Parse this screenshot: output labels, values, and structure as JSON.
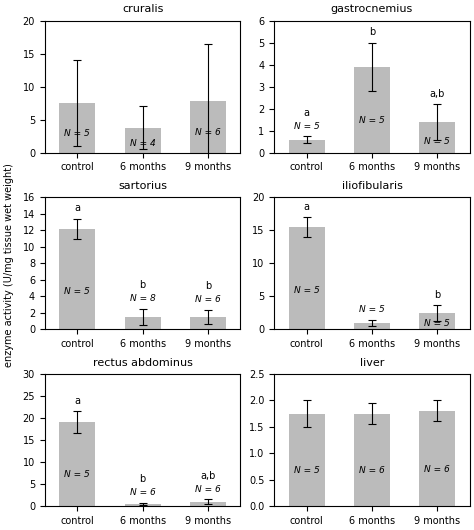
{
  "chart_data": [
    {
      "type": "bar",
      "title": "cruralis",
      "categories": [
        "control",
        "6 months",
        "9 months"
      ],
      "values": [
        7.5,
        3.8,
        7.9
      ],
      "errors": [
        6.5,
        3.2,
        8.5
      ],
      "n_labels": [
        "N = 5",
        "N = 4",
        "N = 6"
      ],
      "color": "#bbbbbb",
      "ylim": [
        0,
        20
      ],
      "yticks": [
        0,
        5,
        10,
        15,
        20
      ]
    },
    {
      "type": "bar",
      "title": "gastrocnemius",
      "categories": [
        "control",
        "6 months",
        "9 months"
      ],
      "values": [
        0.6,
        3.9,
        1.4
      ],
      "errors": [
        0.15,
        1.1,
        0.8
      ],
      "n_labels": [
        "N = 5",
        "N = 5",
        "N = 5"
      ],
      "letters": [
        "a",
        "b",
        "a,b"
      ],
      "color": "#bbbbbb",
      "ylim": [
        0,
        6
      ],
      "yticks": [
        0,
        1,
        2,
        3,
        4,
        5,
        6
      ]
    },
    {
      "type": "bar",
      "title": "sartorius",
      "categories": [
        "control",
        "6 months",
        "9 months"
      ],
      "values": [
        12.2,
        1.5,
        1.5
      ],
      "errors": [
        1.2,
        1.0,
        0.9
      ],
      "n_labels": [
        "N = 5",
        "N = 8",
        "N = 6"
      ],
      "letters": [
        "a",
        "b",
        "b"
      ],
      "color": "#bbbbbb",
      "ylim": [
        0,
        16
      ],
      "yticks": [
        0,
        2,
        4,
        6,
        8,
        10,
        12,
        14,
        16
      ]
    },
    {
      "type": "bar",
      "title": "iliofibularis",
      "categories": [
        "control",
        "6 months",
        "9 months"
      ],
      "values": [
        15.5,
        1.0,
        2.5
      ],
      "errors": [
        1.5,
        0.5,
        1.2
      ],
      "n_labels": [
        "N = 5",
        "N = 5",
        "N = 5"
      ],
      "letters": [
        "a",
        null,
        "b"
      ],
      "color": "#bbbbbb",
      "ylim": [
        0,
        20
      ],
      "yticks": [
        0,
        5,
        10,
        15,
        20
      ]
    },
    {
      "type": "bar",
      "title": "rectus abdominus",
      "categories": [
        "control",
        "6 months",
        "9 months"
      ],
      "values": [
        19.0,
        0.5,
        1.0
      ],
      "errors": [
        2.5,
        0.3,
        0.5
      ],
      "n_labels": [
        "N = 5",
        "N = 6",
        "N = 6"
      ],
      "letters": [
        "a",
        "b",
        "a,b"
      ],
      "color": "#bbbbbb",
      "ylim": [
        0,
        30
      ],
      "yticks": [
        0,
        5,
        10,
        15,
        20,
        25,
        30
      ]
    },
    {
      "type": "bar",
      "title": "liver",
      "categories": [
        "control",
        "6 months",
        "9 months"
      ],
      "values": [
        1.75,
        1.75,
        1.8
      ],
      "errors": [
        0.25,
        0.2,
        0.2
      ],
      "n_labels": [
        "N = 5",
        "N = 6",
        "N = 6"
      ],
      "color": "#bbbbbb",
      "ylim": [
        0,
        2.5
      ],
      "yticks": [
        0.0,
        0.5,
        1.0,
        1.5,
        2.0,
        2.5
      ]
    }
  ],
  "ylabel": "enzyme activity (U/mg tissue wet weight)"
}
